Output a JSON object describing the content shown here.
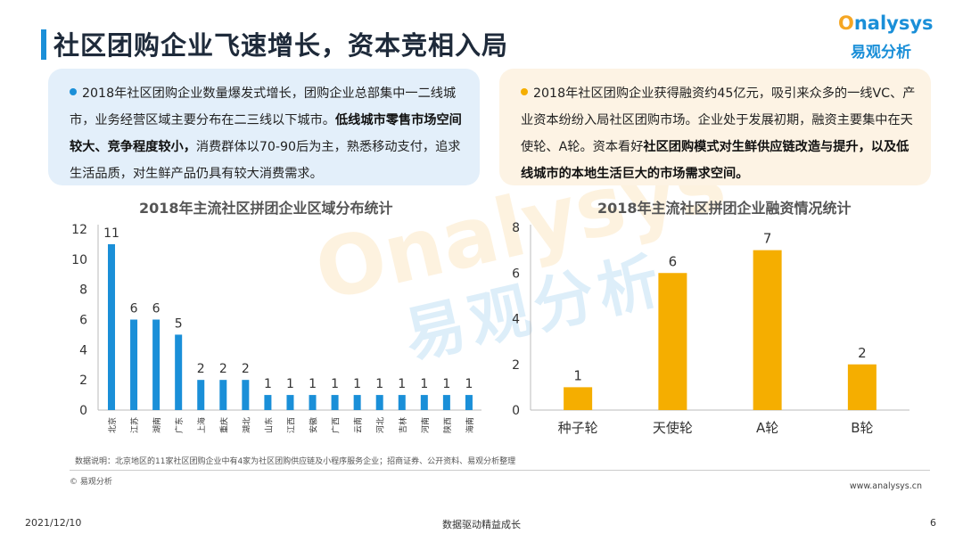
{
  "header": {
    "title": "社区团购企业飞速增长，资本竞相入局",
    "logo_en_o": "O",
    "logo_en_rest": "nalysys",
    "logo_cn": "易观分析"
  },
  "left_box": {
    "text_1": "2018年社区团购企业数量爆发式增长，团购企业总部集中一二线城市，业务经营区域主要分布在二三线以下城市。",
    "bold_1": "低线城市零售市场空间较大、竞争程度较小，",
    "text_2": "消费群体以70-90后为主，熟悉移动支付，追求生活品质，对生鲜产品仍具有较大消费需求。"
  },
  "right_box": {
    "text_1": "2018年社区团购企业获得融资约45亿元，吸引来众多的一线VC、产业资本纷纷入局社区团购市场。企业处于发展初期，融资主要集中在天使轮、A轮。资本看好",
    "bold_1": "社区团购模式对生鲜供应链改造与提升，以及低线城市的本地生活巨大的市场需求空间。"
  },
  "watermark": {
    "en": "Onalysys",
    "cn": "易观分析"
  },
  "colors": {
    "blue": "#1a8fd8",
    "orange": "#f5ae00"
  },
  "chart_data": [
    {
      "type": "bar",
      "title": "2018年主流社区拼团企业区域分布统计",
      "categories": [
        "北京",
        "江苏",
        "湖南",
        "广东",
        "上海",
        "重庆",
        "湖北",
        "山东",
        "江西",
        "安徽",
        "广西",
        "云南",
        "河北",
        "吉林",
        "河南",
        "陕西",
        "海南"
      ],
      "values": [
        11,
        6,
        6,
        5,
        2,
        2,
        2,
        1,
        1,
        1,
        1,
        1,
        1,
        1,
        1,
        1,
        1
      ],
      "ylim": [
        0,
        12
      ],
      "yticks": [
        0,
        2,
        4,
        6,
        8,
        10,
        12
      ],
      "grid": false,
      "color": "#1a8fd8"
    },
    {
      "type": "bar",
      "title": "2018年主流社区拼团企业融资情况统计",
      "categories": [
        "种子轮",
        "天使轮",
        "A轮",
        "B轮"
      ],
      "values": [
        1,
        6,
        7,
        2
      ],
      "ylim": [
        0,
        8
      ],
      "yticks": [
        0,
        2,
        4,
        6,
        8
      ],
      "grid": false,
      "color": "#f5ae00"
    }
  ],
  "footer": {
    "note": "数据说明：北京地区的11家社区团购企业中有4家为社区团购供应链及小程序服务企业；招商证券、公开资料、易观分析整理",
    "copyright": "© 易观分析",
    "website": "www.analysys.cn",
    "date": "2021/12/10",
    "slogan": "数据驱动精益成长",
    "page": "6"
  }
}
